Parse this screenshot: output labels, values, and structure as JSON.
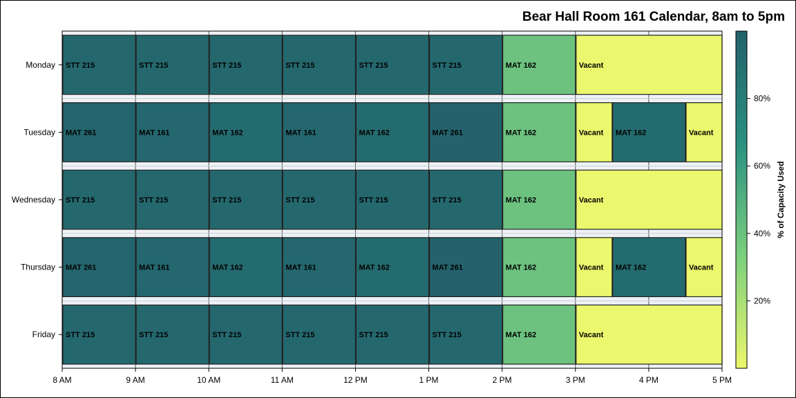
{
  "chart_data": {
    "type": "heatmap",
    "title": "Bear Hall Room 161 Calendar, 8am to 5pm",
    "days": [
      "Monday",
      "Tuesday",
      "Wednesday",
      "Thursday",
      "Friday"
    ],
    "x_ticks": [
      "8 AM",
      "9 AM",
      "10 AM",
      "11 AM",
      "12 PM",
      "1 PM",
      "2 PM",
      "3 PM",
      "4 PM",
      "5 PM"
    ],
    "x_range_hours": [
      8,
      17
    ],
    "colorbar": {
      "label": "% of Capacity Used",
      "ticks": [
        "20%",
        "40%",
        "60%",
        "80%"
      ],
      "tick_values": [
        20,
        40,
        60,
        80
      ],
      "range": [
        0,
        100
      ],
      "colors": [
        "#ebf76c",
        "#7ccf7e",
        "#2a9080",
        "#23616b"
      ]
    },
    "bookings": [
      {
        "day": "Monday",
        "start": 8,
        "end": 9,
        "label": "STT 215",
        "capacity": 95
      },
      {
        "day": "Monday",
        "start": 9,
        "end": 10,
        "label": "STT 215",
        "capacity": 95
      },
      {
        "day": "Monday",
        "start": 10,
        "end": 11,
        "label": "STT 215",
        "capacity": 95
      },
      {
        "day": "Monday",
        "start": 11,
        "end": 12,
        "label": "STT 215",
        "capacity": 95
      },
      {
        "day": "Monday",
        "start": 12,
        "end": 13,
        "label": "STT 215",
        "capacity": 95
      },
      {
        "day": "Monday",
        "start": 13,
        "end": 14,
        "label": "STT 215",
        "capacity": 95
      },
      {
        "day": "Monday",
        "start": 14,
        "end": 15,
        "label": "MAT 162",
        "capacity": 40
      },
      {
        "day": "Monday",
        "start": 15,
        "end": 17,
        "label": "Vacant",
        "capacity": 0
      },
      {
        "day": "Tuesday",
        "start": 8,
        "end": 9,
        "label": "MAT 261",
        "capacity": 97
      },
      {
        "day": "Tuesday",
        "start": 9,
        "end": 10,
        "label": "MAT 161",
        "capacity": 96
      },
      {
        "day": "Tuesday",
        "start": 10,
        "end": 11,
        "label": "MAT 162",
        "capacity": 93
      },
      {
        "day": "Tuesday",
        "start": 11,
        "end": 12,
        "label": "MAT 161",
        "capacity": 96
      },
      {
        "day": "Tuesday",
        "start": 12,
        "end": 13,
        "label": "MAT 162",
        "capacity": 93
      },
      {
        "day": "Tuesday",
        "start": 13,
        "end": 14,
        "label": "MAT 261",
        "capacity": 99
      },
      {
        "day": "Tuesday",
        "start": 14,
        "end": 15,
        "label": "MAT 162",
        "capacity": 40
      },
      {
        "day": "Tuesday",
        "start": 15,
        "end": 15.5,
        "label": "Vacant",
        "capacity": 0
      },
      {
        "day": "Tuesday",
        "start": 15.5,
        "end": 16.5,
        "label": "MAT 162",
        "capacity": 93
      },
      {
        "day": "Tuesday",
        "start": 16.5,
        "end": 17,
        "label": "Vacant",
        "capacity": 0
      },
      {
        "day": "Wednesday",
        "start": 8,
        "end": 9,
        "label": "STT 215",
        "capacity": 95
      },
      {
        "day": "Wednesday",
        "start": 9,
        "end": 10,
        "label": "STT 215",
        "capacity": 95
      },
      {
        "day": "Wednesday",
        "start": 10,
        "end": 11,
        "label": "STT 215",
        "capacity": 95
      },
      {
        "day": "Wednesday",
        "start": 11,
        "end": 12,
        "label": "STT 215",
        "capacity": 95
      },
      {
        "day": "Wednesday",
        "start": 12,
        "end": 13,
        "label": "STT 215",
        "capacity": 95
      },
      {
        "day": "Wednesday",
        "start": 13,
        "end": 14,
        "label": "STT 215",
        "capacity": 95
      },
      {
        "day": "Wednesday",
        "start": 14,
        "end": 15,
        "label": "MAT 162",
        "capacity": 40
      },
      {
        "day": "Wednesday",
        "start": 15,
        "end": 17,
        "label": "Vacant",
        "capacity": 0
      },
      {
        "day": "Thursday",
        "start": 8,
        "end": 9,
        "label": "MAT 261",
        "capacity": 97
      },
      {
        "day": "Thursday",
        "start": 9,
        "end": 10,
        "label": "MAT 161",
        "capacity": 96
      },
      {
        "day": "Thursday",
        "start": 10,
        "end": 11,
        "label": "MAT 162",
        "capacity": 93
      },
      {
        "day": "Thursday",
        "start": 11,
        "end": 12,
        "label": "MAT 161",
        "capacity": 96
      },
      {
        "day": "Thursday",
        "start": 12,
        "end": 13,
        "label": "MAT 162",
        "capacity": 93
      },
      {
        "day": "Thursday",
        "start": 13,
        "end": 14,
        "label": "MAT 261",
        "capacity": 99
      },
      {
        "day": "Thursday",
        "start": 14,
        "end": 15,
        "label": "MAT 162",
        "capacity": 40
      },
      {
        "day": "Thursday",
        "start": 15,
        "end": 15.5,
        "label": "Vacant",
        "capacity": 0
      },
      {
        "day": "Thursday",
        "start": 15.5,
        "end": 16.5,
        "label": "MAT 162",
        "capacity": 93
      },
      {
        "day": "Thursday",
        "start": 16.5,
        "end": 17,
        "label": "Vacant",
        "capacity": 0
      },
      {
        "day": "Friday",
        "start": 8,
        "end": 9,
        "label": "STT 215",
        "capacity": 95
      },
      {
        "day": "Friday",
        "start": 9,
        "end": 10,
        "label": "STT 215",
        "capacity": 95
      },
      {
        "day": "Friday",
        "start": 10,
        "end": 11,
        "label": "STT 215",
        "capacity": 95
      },
      {
        "day": "Friday",
        "start": 11,
        "end": 12,
        "label": "STT 215",
        "capacity": 95
      },
      {
        "day": "Friday",
        "start": 12,
        "end": 13,
        "label": "STT 215",
        "capacity": 95
      },
      {
        "day": "Friday",
        "start": 13,
        "end": 14,
        "label": "STT 215",
        "capacity": 95
      },
      {
        "day": "Friday",
        "start": 14,
        "end": 15,
        "label": "MAT 162",
        "capacity": 40
      },
      {
        "day": "Friday",
        "start": 15,
        "end": 17,
        "label": "Vacant",
        "capacity": 0
      }
    ]
  }
}
